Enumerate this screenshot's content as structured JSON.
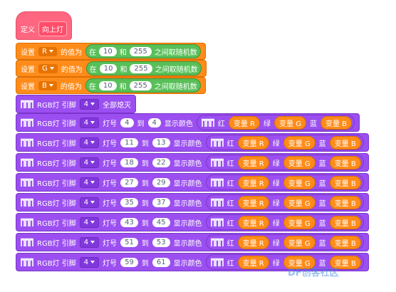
{
  "define": {
    "keyword": "定义",
    "name": "向上灯"
  },
  "set_blocks": [
    {
      "label": "设置",
      "variable": "R",
      "mid": "的值为",
      "op_in": "在",
      "low": 10,
      "and": "和",
      "high": 255,
      "suffix": "之间取随机数"
    },
    {
      "label": "设置",
      "variable": "G",
      "mid": "的值为",
      "op_in": "在",
      "low": 10,
      "and": "和",
      "high": 255,
      "suffix": "之间取随机数"
    },
    {
      "label": "设置",
      "variable": "B",
      "mid": "的值为",
      "op_in": "在",
      "low": 10,
      "and": "和",
      "high": 255,
      "suffix": "之间取随机数"
    }
  ],
  "clear_block": {
    "label": "RGB灯 引脚",
    "pin": 4,
    "action": "全部熄灭"
  },
  "color_blocks": [
    {
      "label": "RGB灯 引脚",
      "pin": 4,
      "lamp": "灯号",
      "from": 4,
      "to": "到",
      "end": 4,
      "show": "显示颜色",
      "red": "红",
      "r": "变量 R",
      "green": "绿",
      "g": "变量 G",
      "blue": "蓝",
      "b": "变量 B"
    },
    {
      "label": "RGB灯 引脚",
      "pin": 4,
      "lamp": "灯号",
      "from": 11,
      "to": "到",
      "end": 13,
      "show": "显示颜色",
      "red": "红",
      "r": "变量 R",
      "green": "绿",
      "g": "变量 G",
      "blue": "蓝",
      "b": "变量 B"
    },
    {
      "label": "RGB灯 引脚",
      "pin": 4,
      "lamp": "灯号",
      "from": 18,
      "to": "到",
      "end": 22,
      "show": "显示颜色",
      "red": "红",
      "r": "变量 R",
      "green": "绿",
      "g": "变量 G",
      "blue": "蓝",
      "b": "变量 B"
    },
    {
      "label": "RGB灯 引脚",
      "pin": 4,
      "lamp": "灯号",
      "from": 27,
      "to": "到",
      "end": 29,
      "show": "显示颜色",
      "red": "红",
      "r": "变量 R",
      "green": "绿",
      "g": "变量 G",
      "blue": "蓝",
      "b": "变量 B"
    },
    {
      "label": "RGB灯 引脚",
      "pin": 4,
      "lamp": "灯号",
      "from": 35,
      "to": "到",
      "end": 37,
      "show": "显示颜色",
      "red": "红",
      "r": "变量 R",
      "green": "绿",
      "g": "变量 G",
      "blue": "蓝",
      "b": "变量 B"
    },
    {
      "label": "RGB灯 引脚",
      "pin": 4,
      "lamp": "灯号",
      "from": 43,
      "to": "到",
      "end": 45,
      "show": "显示颜色",
      "red": "红",
      "r": "变量 R",
      "green": "绿",
      "g": "变量 G",
      "blue": "蓝",
      "b": "变量 B"
    },
    {
      "label": "RGB灯 引脚",
      "pin": 4,
      "lamp": "灯号",
      "from": 51,
      "to": "到",
      "end": 53,
      "show": "显示颜色",
      "red": "红",
      "r": "变量 R",
      "green": "绿",
      "g": "变量 G",
      "blue": "蓝",
      "b": "变量 B"
    },
    {
      "label": "RGB灯 引脚",
      "pin": 4,
      "lamp": "灯号",
      "from": 59,
      "to": "到",
      "end": 61,
      "show": "显示颜色",
      "red": "红",
      "r": "变量 R",
      "green": "绿",
      "g": "变量 G",
      "blue": "蓝",
      "b": "变量 B"
    }
  ],
  "watermark": "DF创客社区"
}
